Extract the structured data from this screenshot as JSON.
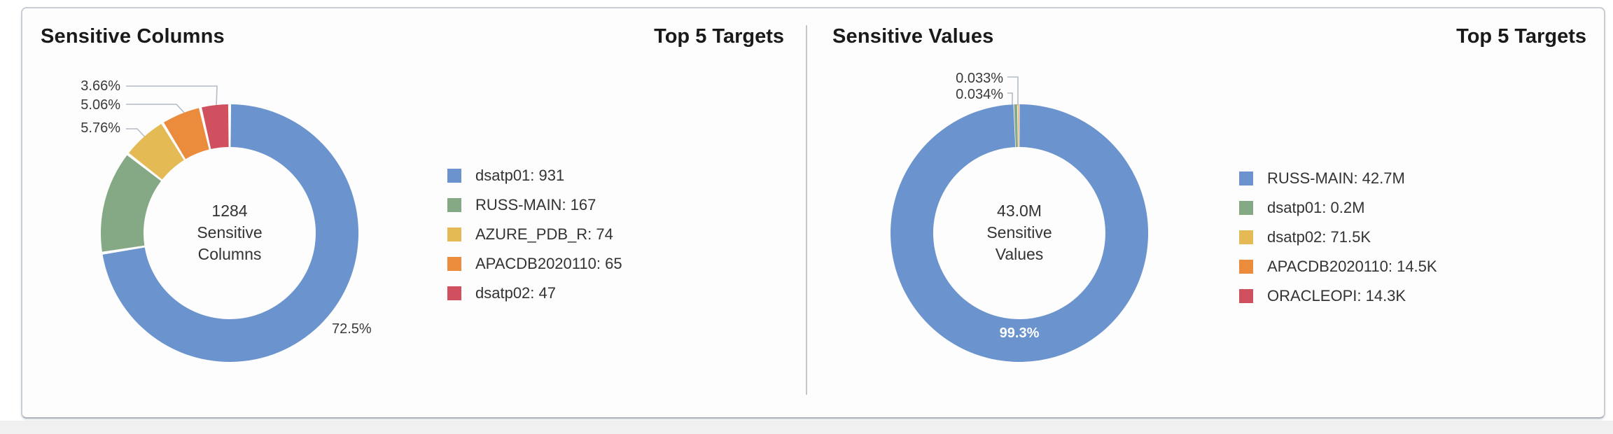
{
  "card": {
    "name": "Top 5 Targets summary"
  },
  "colors": {
    "palette": [
      "#6b93cd",
      "#85a985",
      "#e4ba55",
      "#eb8c3d",
      "#d05060"
    ],
    "card_border": "#c9ced5",
    "divider": "#c3c7cb",
    "leader_line": "#b4bcc6",
    "title_text": "#1a1a1a",
    "label_text": "#333333",
    "inside_label_text": "#ffffff"
  },
  "chart_data": [
    {
      "type": "pie",
      "title": "Sensitive Columns",
      "subtitle": "Top 5 Targets",
      "center": [
        "1284",
        "Sensitive",
        "Columns"
      ],
      "total": 1284,
      "legend_position": "right",
      "series": [
        {
          "name": "dsatp01",
          "value": 931,
          "pct": "72.5%",
          "color": "#6b93cd",
          "legend": "dsatp01: 931"
        },
        {
          "name": "RUSS-MAIN",
          "value": 167,
          "pct": "13.0%",
          "color": "#85a985",
          "legend": "RUSS-MAIN: 167"
        },
        {
          "name": "AZURE_PDB_R",
          "value": 74,
          "pct": "5.76%",
          "color": "#e4ba55",
          "legend": "AZURE_PDB_R: 74"
        },
        {
          "name": "APACDB2020110",
          "value": 65,
          "pct": "5.06%",
          "color": "#eb8c3d",
          "legend": "APACDB2020110: 65"
        },
        {
          "name": "dsatp02",
          "value": 47,
          "pct": "3.66%",
          "color": "#d05060",
          "legend": "dsatp02: 47"
        }
      ],
      "labels": {
        "primary_pct": "72.5%",
        "callouts": [
          "3.66%",
          "5.06%",
          "5.76%"
        ]
      }
    },
    {
      "type": "pie",
      "title": "Sensitive Values",
      "subtitle": "Top 5 Targets",
      "center": [
        "43.0M",
        "Sensitive",
        "Values"
      ],
      "total_display": "43.0M",
      "legend_position": "right",
      "series": [
        {
          "name": "RUSS-MAIN",
          "value": 42700000,
          "display": "42.7M",
          "pct": "99.3%",
          "color": "#6b93cd",
          "legend": "RUSS-MAIN: 42.7M"
        },
        {
          "name": "dsatp01",
          "value": 200000,
          "display": "0.2M",
          "color": "#85a985",
          "legend": "dsatp01: 0.2M"
        },
        {
          "name": "dsatp02",
          "value": 71500,
          "display": "71.5K",
          "color": "#e4ba55",
          "legend": "dsatp02: 71.5K"
        },
        {
          "name": "APACDB2020110",
          "value": 14500,
          "display": "14.5K",
          "pct": "0.034%",
          "color": "#eb8c3d",
          "legend": "APACDB2020110: 14.5K"
        },
        {
          "name": "ORACLEOPI",
          "value": 14300,
          "display": "14.3K",
          "pct": "0.033%",
          "color": "#d05060",
          "legend": "ORACLEOPI: 14.3K"
        }
      ],
      "labels": {
        "primary_pct": "99.3%",
        "callouts": [
          "0.033%",
          "0.034%"
        ]
      }
    }
  ]
}
